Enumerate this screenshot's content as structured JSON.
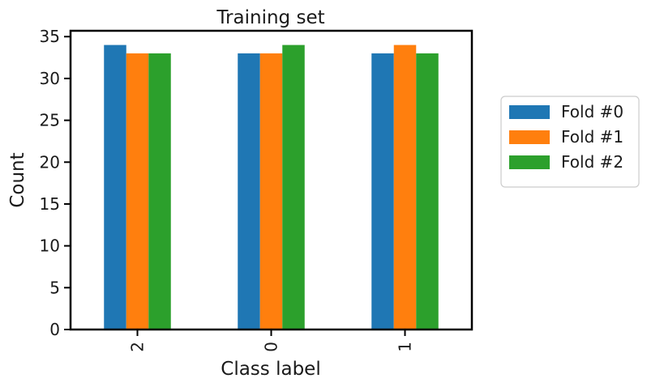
{
  "chart_data": {
    "type": "bar",
    "title": "Training set",
    "xlabel": "Class label",
    "ylabel": "Count",
    "categories": [
      "2",
      "0",
      "1"
    ],
    "series": [
      {
        "name": "Fold #0",
        "values": [
          34,
          33,
          33
        ],
        "color": "#1f77b4"
      },
      {
        "name": "Fold #1",
        "values": [
          33,
          33,
          34
        ],
        "color": "#ff7f0e"
      },
      {
        "name": "Fold #2",
        "values": [
          33,
          34,
          33
        ],
        "color": "#2ca02c"
      }
    ],
    "ylim": [
      0,
      35.7
    ],
    "yticks": [
      "0",
      "5",
      "10",
      "15",
      "20",
      "25",
      "30",
      "35"
    ],
    "xtick_rotation": 90,
    "grid": false,
    "legend_position": "outside right"
  }
}
